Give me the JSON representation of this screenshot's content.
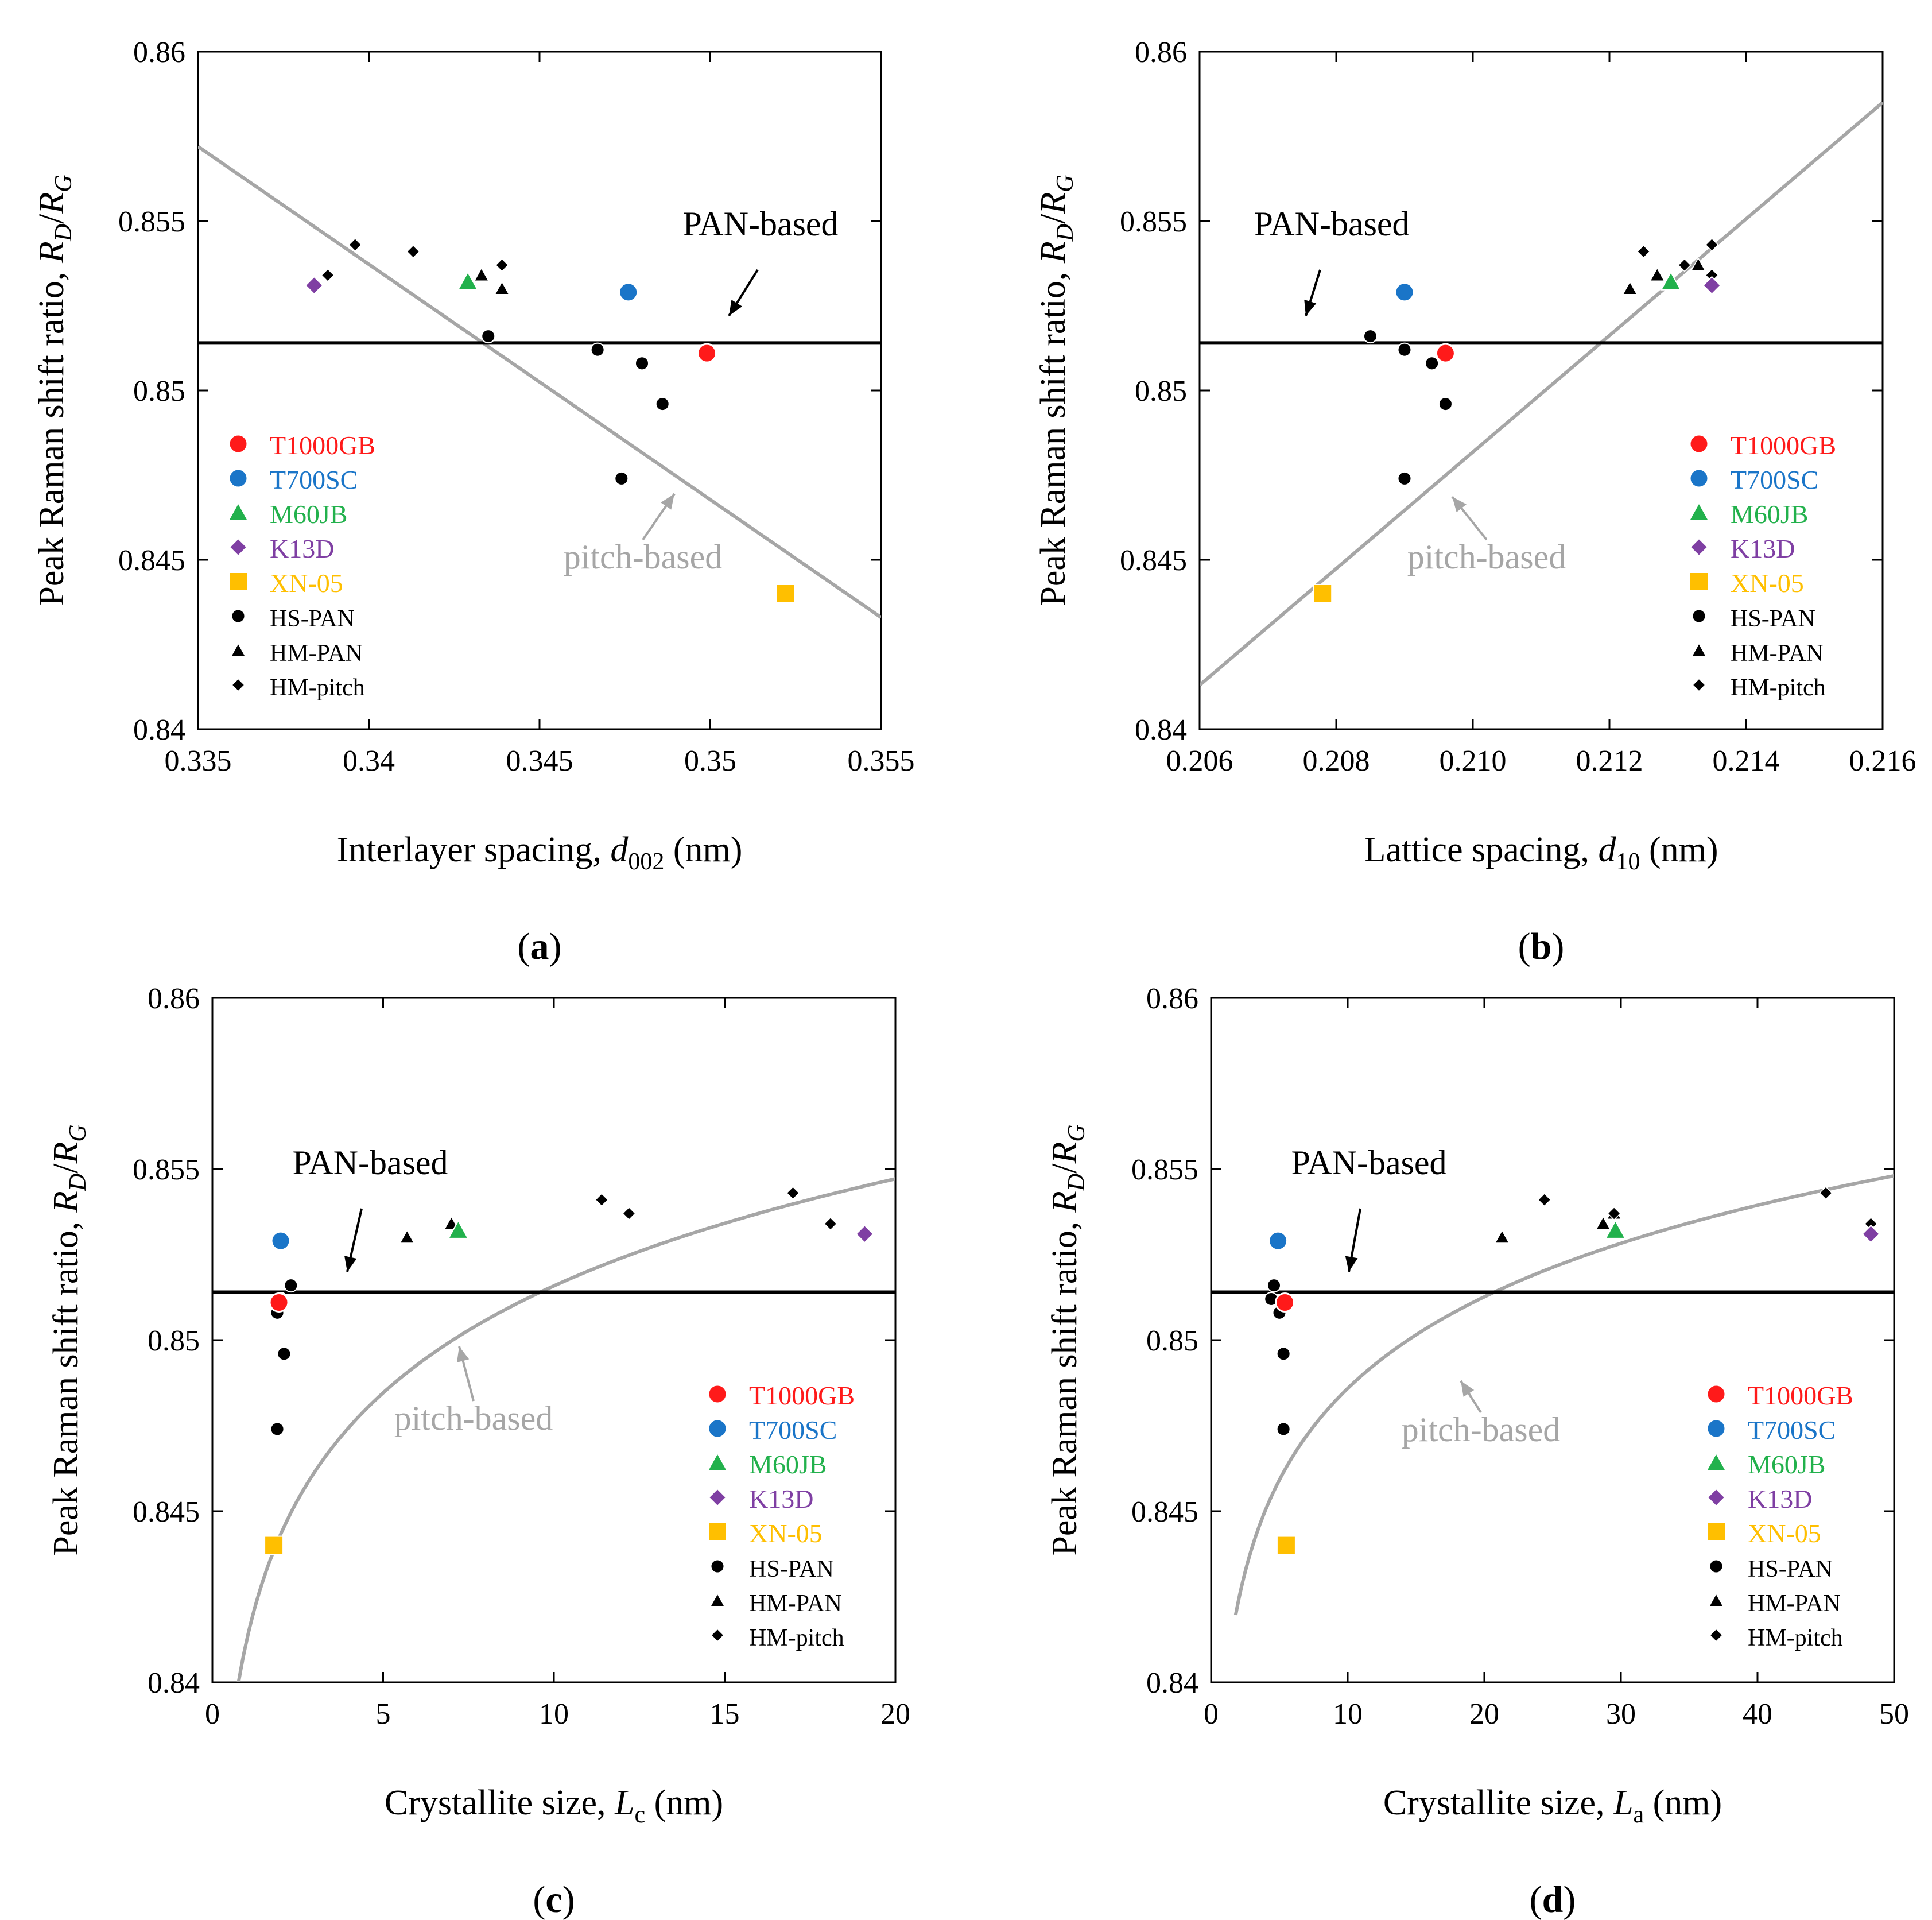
{
  "figure": {
    "y_axis_label_main": "Peak Raman shift ratio, ",
    "y_axis_label_R": "R",
    "y_axis_label_sub_D": "D",
    "y_axis_label_slash": "/",
    "y_axis_label_sub_G": "G"
  },
  "colors": {
    "T1000GB": "#ff1a1a",
    "T700SC": "#1a75c8",
    "M60JB": "#22b14c",
    "K13D": "#7f3fa3",
    "XN-05": "#ffbf00",
    "black": "#000000",
    "pitch_line": "#a6a6a6"
  },
  "legend_entries": [
    {
      "label": "T1000GB",
      "marker": "circle",
      "color": "#ff1a1a",
      "icon": "circle-marker-icon"
    },
    {
      "label": "T700SC",
      "marker": "circle",
      "color": "#1a75c8",
      "icon": "circle-marker-icon"
    },
    {
      "label": "M60JB",
      "marker": "triangle",
      "color": "#22b14c",
      "icon": "triangle-marker-icon"
    },
    {
      "label": "K13D",
      "marker": "diamond",
      "color": "#7f3fa3",
      "icon": "diamond-marker-icon"
    },
    {
      "label": "XN-05",
      "marker": "square",
      "color": "#ffbf00",
      "icon": "square-marker-icon"
    },
    {
      "label": "HS-PAN",
      "marker": "circle",
      "color": "#000000",
      "icon": "circle-marker-icon"
    },
    {
      "label": "HM-PAN",
      "marker": "triangle",
      "color": "#000000",
      "icon": "triangle-marker-icon"
    },
    {
      "label": "HM-pitch",
      "marker": "diamond",
      "color": "#000000",
      "icon": "diamond-marker-icon"
    }
  ],
  "chart_data": [
    {
      "panel": "(a)",
      "panel_letter": "a",
      "type": "scatter",
      "xlabel_main": "Interlayer spacing, ",
      "xlabel_var": "d",
      "xlabel_sub": "002",
      "xlabel_unit": " (nm)",
      "xlim": [
        0.335,
        0.355
      ],
      "ylim": [
        0.84,
        0.86
      ],
      "xticks": [
        0.335,
        0.34,
        0.345,
        0.35,
        0.355
      ],
      "xtick_labels": [
        "0.335",
        "0.34",
        "0.345",
        "0.35",
        "0.355"
      ],
      "yticks": [
        0.84,
        0.845,
        0.85,
        0.855,
        0.86
      ],
      "ytick_labels": [
        "0.84",
        "0.845",
        "0.85",
        "0.855",
        "0.86"
      ],
      "legend_position": "lower-left",
      "pan_line_y": 0.8514,
      "pan_label": "PAN-based",
      "pitch_label": "pitch-based",
      "pitch_curve": {
        "type": "linear",
        "x": [
          0.335,
          0.355
        ],
        "y": [
          0.8572,
          0.8433
        ]
      },
      "series": [
        {
          "name": "HS-PAN",
          "x": [
            0.3435,
            0.3467,
            0.348,
            0.3486,
            0.3474
          ],
          "y": [
            0.8516,
            0.8512,
            0.8508,
            0.8496,
            0.8474
          ]
        },
        {
          "name": "HM-PAN",
          "x": [
            0.3433,
            0.3439
          ],
          "y": [
            0.8534,
            0.853
          ]
        },
        {
          "name": "HM-pitch",
          "x": [
            0.3388,
            0.3396,
            0.3413,
            0.3439
          ],
          "y": [
            0.8534,
            0.8543,
            0.8541,
            0.8537
          ]
        },
        {
          "name": "T1000GB",
          "x": [
            0.3499
          ],
          "y": [
            0.8511
          ]
        },
        {
          "name": "T700SC",
          "x": [
            0.3476
          ],
          "y": [
            0.8529
          ]
        },
        {
          "name": "M60JB",
          "x": [
            0.3429
          ],
          "y": [
            0.8532
          ]
        },
        {
          "name": "K13D",
          "x": [
            0.3384
          ],
          "y": [
            0.8531
          ]
        },
        {
          "name": "XN-05",
          "x": [
            0.3522
          ],
          "y": [
            0.844
          ]
        }
      ]
    },
    {
      "panel": "(b)",
      "panel_letter": "b",
      "type": "scatter",
      "xlabel_main": "Lattice spacing, ",
      "xlabel_var": "d",
      "xlabel_sub": "10",
      "xlabel_unit": " (nm)",
      "xlim": [
        0.206,
        0.216
      ],
      "ylim": [
        0.84,
        0.86
      ],
      "xticks": [
        0.206,
        0.208,
        0.21,
        0.212,
        0.214,
        0.216
      ],
      "xtick_labels": [
        "0.206",
        "0.208",
        "0.210",
        "0.212",
        "0.214",
        "0.216"
      ],
      "yticks": [
        0.84,
        0.845,
        0.85,
        0.855,
        0.86
      ],
      "ytick_labels": [
        "0.84",
        "0.845",
        "0.85",
        "0.855",
        "0.86"
      ],
      "legend_position": "lower-right",
      "pan_line_y": 0.8514,
      "pan_label": "PAN-based",
      "pitch_label": "pitch-based",
      "pitch_curve": {
        "type": "linear",
        "x": [
          0.206,
          0.216
        ],
        "y": [
          0.8413,
          0.8585
        ]
      },
      "series": [
        {
          "name": "HS-PAN",
          "x": [
            0.2085,
            0.209,
            0.2094,
            0.2096,
            0.209
          ],
          "y": [
            0.8516,
            0.8512,
            0.8508,
            0.8496,
            0.8474
          ]
        },
        {
          "name": "HM-PAN",
          "x": [
            0.2123,
            0.2127,
            0.2133
          ],
          "y": [
            0.853,
            0.8534,
            0.8537
          ]
        },
        {
          "name": "HM-pitch",
          "x": [
            0.2125,
            0.2131,
            0.2135,
            0.2135
          ],
          "y": [
            0.8541,
            0.8537,
            0.8543,
            0.8534
          ]
        },
        {
          "name": "T1000GB",
          "x": [
            0.2096
          ],
          "y": [
            0.8511
          ]
        },
        {
          "name": "T700SC",
          "x": [
            0.209
          ],
          "y": [
            0.8529
          ]
        },
        {
          "name": "M60JB",
          "x": [
            0.2129
          ],
          "y": [
            0.8532
          ]
        },
        {
          "name": "K13D",
          "x": [
            0.2135
          ],
          "y": [
            0.8531
          ]
        },
        {
          "name": "XN-05",
          "x": [
            0.2078
          ],
          "y": [
            0.844
          ]
        }
      ]
    },
    {
      "panel": "(c)",
      "panel_letter": "c",
      "type": "scatter",
      "xlabel_main": "Crystallite size, ",
      "xlabel_var": "L",
      "xlabel_sub": "c",
      "xlabel_unit": " (nm)",
      "xlim": [
        0,
        20
      ],
      "ylim": [
        0.84,
        0.86
      ],
      "xticks": [
        0,
        5,
        10,
        15,
        20
      ],
      "xtick_labels": [
        "0",
        "5",
        "10",
        "15",
        "20"
      ],
      "yticks": [
        0.84,
        0.845,
        0.85,
        0.855,
        0.86
      ],
      "ytick_labels": [
        "0.84",
        "0.845",
        "0.85",
        "0.855",
        "0.86"
      ],
      "legend_position": "lower-right",
      "pan_line_y": 0.8514,
      "pan_label": "PAN-based",
      "pitch_label": "pitch-based",
      "pitch_curve": {
        "type": "log",
        "a": 0.8412,
        "b": 0.00451,
        "x_start": 0.7,
        "x_end": 20
      },
      "series": [
        {
          "name": "HS-PAN",
          "x": [
            2.3,
            2.0,
            1.9,
            2.1,
            1.9
          ],
          "y": [
            0.8516,
            0.8512,
            0.8508,
            0.8496,
            0.8474
          ]
        },
        {
          "name": "HM-PAN",
          "x": [
            5.7,
            7.0
          ],
          "y": [
            0.853,
            0.8534
          ]
        },
        {
          "name": "HM-pitch",
          "x": [
            11.4,
            12.2,
            17.0,
            18.1
          ],
          "y": [
            0.8541,
            0.8537,
            0.8543,
            0.8534
          ]
        },
        {
          "name": "T1000GB",
          "x": [
            1.95
          ],
          "y": [
            0.8511
          ]
        },
        {
          "name": "T700SC",
          "x": [
            2.0
          ],
          "y": [
            0.8529
          ]
        },
        {
          "name": "M60JB",
          "x": [
            7.2
          ],
          "y": [
            0.8532
          ]
        },
        {
          "name": "K13D",
          "x": [
            19.1
          ],
          "y": [
            0.8531
          ]
        },
        {
          "name": "XN-05",
          "x": [
            1.8
          ],
          "y": [
            0.844
          ]
        }
      ]
    },
    {
      "panel": "(d)",
      "panel_letter": "d",
      "type": "scatter",
      "xlabel_main": "Crystallite size, ",
      "xlabel_var": "L",
      "xlabel_sub": "a",
      "xlabel_unit": " (nm)",
      "xlim": [
        0,
        50
      ],
      "ylim": [
        0.84,
        0.86
      ],
      "xticks": [
        0,
        10,
        20,
        30,
        40,
        50
      ],
      "xtick_labels": [
        "0",
        "10",
        "20",
        "30",
        "40",
        "50"
      ],
      "yticks": [
        0.84,
        0.845,
        0.85,
        0.855,
        0.86
      ],
      "ytick_labels": [
        "0.84",
        "0.845",
        "0.85",
        "0.855",
        "0.86"
      ],
      "legend_position": "lower-right",
      "pan_line_y": 0.8514,
      "pan_label": "PAN-based",
      "pitch_label": "pitch-based",
      "pitch_curve": {
        "type": "log",
        "a": 0.8397,
        "b": 0.00386,
        "x_start": 1.8,
        "x_end": 50
      },
      "series": [
        {
          "name": "HS-PAN",
          "x": [
            4.6,
            4.4,
            5.0,
            5.3,
            5.3
          ],
          "y": [
            0.8516,
            0.8512,
            0.8508,
            0.8496,
            0.8474
          ]
        },
        {
          "name": "HM-PAN",
          "x": [
            21.3,
            28.7,
            29.5
          ],
          "y": [
            0.853,
            0.8534,
            0.8537
          ]
        },
        {
          "name": "HM-pitch",
          "x": [
            24.4,
            29.5,
            45.0,
            48.3
          ],
          "y": [
            0.8541,
            0.8537,
            0.8543,
            0.8534
          ]
        },
        {
          "name": "T1000GB",
          "x": [
            5.4
          ],
          "y": [
            0.8511
          ]
        },
        {
          "name": "T700SC",
          "x": [
            4.9
          ],
          "y": [
            0.8529
          ]
        },
        {
          "name": "M60JB",
          "x": [
            29.6
          ],
          "y": [
            0.8532
          ]
        },
        {
          "name": "K13D",
          "x": [
            48.3
          ],
          "y": [
            0.8531
          ]
        },
        {
          "name": "XN-05",
          "x": [
            5.5
          ],
          "y": [
            0.844
          ]
        }
      ]
    }
  ]
}
